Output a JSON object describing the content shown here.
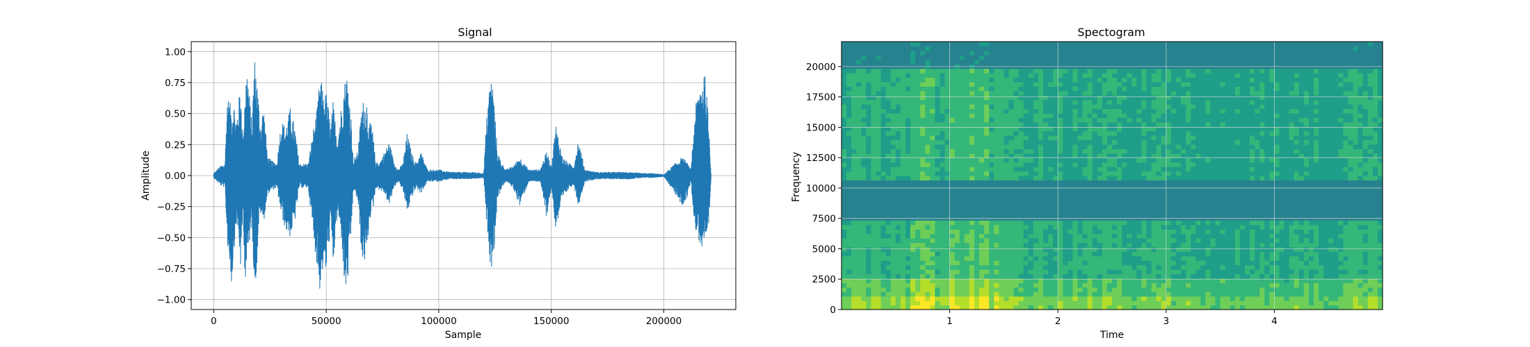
{
  "chart_data": [
    {
      "type": "line",
      "title": "Signal",
      "xlabel": "Sample",
      "ylabel": "Amplitude",
      "xlim": [
        -10000,
        232000
      ],
      "ylim": [
        -1.08,
        1.08
      ],
      "xticks": [
        0,
        50000,
        100000,
        150000,
        200000
      ],
      "xtick_labels": [
        "0",
        "50000",
        "100000",
        "150000",
        "200000"
      ],
      "yticks": [
        1.0,
        0.75,
        0.5,
        0.25,
        0.0,
        -0.25,
        -0.5,
        -0.75,
        -1.0
      ],
      "ytick_labels": [
        "1.00",
        "0.75",
        "0.50",
        "0.25",
        "0.00",
        "−0.25",
        "−0.50",
        "−0.75",
        "−1.00"
      ],
      "grid": true,
      "color": "#1f77b4",
      "series": [
        {
          "x": [
            0,
            3000,
            5000,
            6000,
            8000,
            9000,
            10000,
            11000,
            12000,
            13000,
            14000,
            15000,
            17000,
            18000,
            19000,
            20000,
            21000,
            22000,
            24000,
            26000,
            28000,
            30000,
            32000,
            34000,
            36000,
            38000,
            40000,
            42000,
            44000,
            46000,
            47000,
            48000,
            49000,
            50000,
            51000,
            52000,
            53000,
            55000,
            57000,
            58000,
            59000,
            60000,
            61000,
            62000,
            64000,
            66000,
            68000,
            69000,
            70000,
            71000,
            72000,
            74000,
            76000,
            78000,
            80000,
            82000,
            84000,
            86000,
            88000,
            90000,
            92000,
            95000,
            100000,
            105000,
            110000,
            115000,
            120000,
            121000,
            122000,
            123000,
            124000,
            125000,
            126000,
            128000,
            130000,
            133000,
            136000,
            140000,
            145000,
            148000,
            150000,
            152000,
            155000,
            158000,
            160000,
            162000,
            165000,
            170000,
            175000,
            180000,
            185000,
            190000,
            195000,
            200000,
            205000,
            208000,
            210000,
            212000,
            214000,
            216000,
            217000,
            218000,
            219000,
            220000,
            221000
          ],
          "env_max": [
            0.02,
            0.08,
            0.1,
            0.65,
            0.55,
            0.6,
            0.45,
            0.6,
            0.75,
            0.25,
            0.8,
            0.88,
            0.4,
            0.98,
            0.85,
            0.6,
            0.4,
            0.6,
            0.15,
            0.12,
            0.1,
            0.45,
            0.4,
            0.55,
            0.4,
            0.1,
            0.1,
            0.1,
            0.35,
            0.55,
            0.78,
            0.75,
            0.65,
            0.68,
            0.55,
            0.4,
            0.6,
            0.3,
            0.62,
            0.75,
            0.85,
            0.7,
            0.5,
            0.12,
            0.2,
            0.6,
            0.62,
            0.4,
            0.45,
            0.3,
            0.1,
            0.12,
            0.2,
            0.28,
            0.12,
            0.05,
            0.1,
            0.35,
            0.18,
            0.1,
            0.2,
            0.05,
            0.05,
            0.03,
            0.03,
            0.03,
            0.02,
            0.4,
            0.65,
            0.8,
            0.75,
            0.5,
            0.2,
            0.1,
            0.05,
            0.08,
            0.15,
            0.05,
            0.05,
            0.2,
            0.08,
            0.42,
            0.15,
            0.1,
            0.08,
            0.3,
            0.05,
            0.03,
            0.03,
            0.03,
            0.03,
            0.02,
            0.02,
            0.01,
            0.1,
            0.15,
            0.12,
            0.05,
            0.55,
            0.75,
            0.8,
            0.88,
            0.68,
            0.42,
            0.02
          ],
          "env_min": [
            -0.02,
            -0.08,
            -0.1,
            -0.55,
            -0.9,
            -0.6,
            -0.4,
            -0.5,
            -0.78,
            -0.3,
            -0.9,
            -0.7,
            -0.35,
            -0.95,
            -0.8,
            -0.4,
            -0.3,
            -0.4,
            -0.15,
            -0.12,
            -0.1,
            -0.32,
            -0.45,
            -0.5,
            -0.38,
            -0.1,
            -0.1,
            -0.1,
            -0.45,
            -0.75,
            -0.95,
            -0.8,
            -0.75,
            -0.8,
            -0.6,
            -0.4,
            -0.75,
            -0.3,
            -0.55,
            -0.92,
            -0.95,
            -0.8,
            -0.5,
            -0.12,
            -0.2,
            -0.72,
            -0.68,
            -0.4,
            -0.3,
            -0.25,
            -0.1,
            -0.12,
            -0.15,
            -0.25,
            -0.1,
            -0.05,
            -0.12,
            -0.3,
            -0.18,
            -0.1,
            -0.15,
            -0.05,
            -0.05,
            -0.03,
            -0.03,
            -0.03,
            -0.02,
            -0.35,
            -0.5,
            -0.75,
            -0.72,
            -0.5,
            -0.2,
            -0.1,
            -0.05,
            -0.1,
            -0.25,
            -0.05,
            -0.05,
            -0.35,
            -0.1,
            -0.45,
            -0.2,
            -0.1,
            -0.08,
            -0.25,
            -0.05,
            -0.03,
            -0.03,
            -0.03,
            -0.03,
            -0.02,
            -0.02,
            -0.01,
            -0.15,
            -0.25,
            -0.2,
            -0.05,
            -0.45,
            -0.55,
            -0.6,
            -0.55,
            -0.62,
            -0.45,
            -0.02
          ]
        }
      ]
    },
    {
      "type": "heatmap",
      "title": "Spectogram",
      "xlabel": "Time",
      "ylabel": "Frequency",
      "xlim": [
        0,
        5.0
      ],
      "ylim": [
        0,
        22050
      ],
      "xticks": [
        1,
        2,
        3,
        4
      ],
      "xtick_labels": [
        "1",
        "2",
        "3",
        "4"
      ],
      "yticks": [
        0,
        2500,
        5000,
        7500,
        10000,
        12500,
        15000,
        17500,
        20000
      ],
      "ytick_labels": [
        "0",
        "2500",
        "5000",
        "7500",
        "10000",
        "12500",
        "15000",
        "17500",
        "20000"
      ],
      "grid": true,
      "colormap": [
        "#26828e",
        "#1f9e89",
        "#35b779",
        "#6ece58",
        "#b5de2b",
        "#fde725"
      ],
      "background_color": "#2a788e",
      "time_activity": [
        {
          "t": [
            0.0,
            0.62
          ],
          "level": 0.45
        },
        {
          "t": [
            0.62,
            0.85
          ],
          "level": 0.8
        },
        {
          "t": [
            0.85,
            1.0
          ],
          "level": 0.5
        },
        {
          "t": [
            1.0,
            1.35
          ],
          "level": 0.75
        },
        {
          "t": [
            1.35,
            1.6
          ],
          "level": 0.55
        },
        {
          "t": [
            1.6,
            2.8
          ],
          "level": 0.4
        },
        {
          "t": [
            2.8,
            3.2
          ],
          "level": 0.35
        },
        {
          "t": [
            3.2,
            4.7
          ],
          "level": 0.3
        },
        {
          "t": [
            4.7,
            5.0
          ],
          "level": 0.5
        }
      ],
      "frequency_bands": [
        {
          "f": [
            0,
            1000
          ],
          "level": 0.95
        },
        {
          "f": [
            1000,
            2500
          ],
          "level": 0.75
        },
        {
          "f": [
            2500,
            7200
          ],
          "level": 0.55
        },
        {
          "f": [
            7200,
            10500
          ],
          "level": 0.1
        },
        {
          "f": [
            10500,
            20000
          ],
          "level": 0.5
        },
        {
          "f": [
            20000,
            22050
          ],
          "level": 0.15
        }
      ]
    }
  ]
}
